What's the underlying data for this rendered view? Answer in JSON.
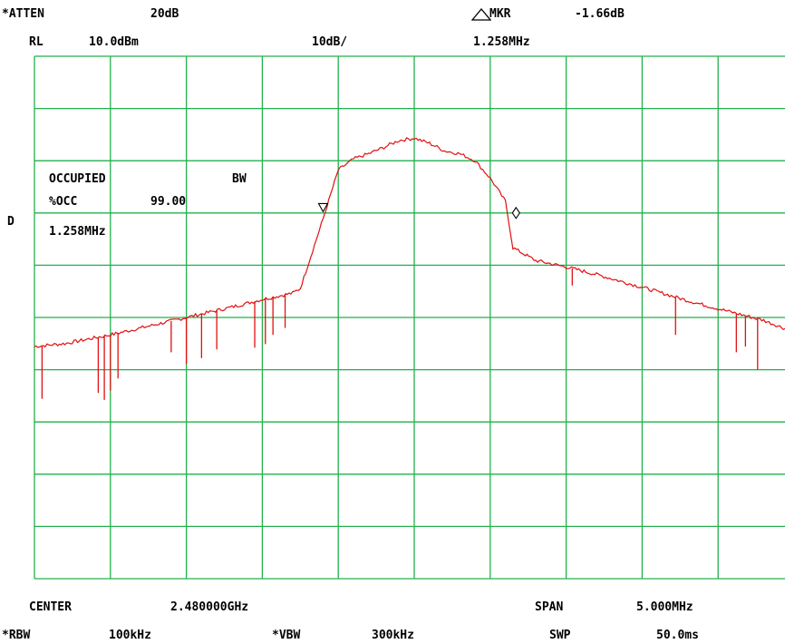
{
  "header": {
    "atten_label": "*ATTEN",
    "atten_value": "20dB",
    "mkr_label": "MKR",
    "mkr_value": "-1.66dB",
    "rl_label": "RL",
    "rl_value": "10.0dBm",
    "scale": "10dB/",
    "mkr_freq": "1.258MHz"
  },
  "side_marker": "D",
  "occupied": {
    "title": "OCCUPIED",
    "bw": "BW",
    "pct_label": "%OCC",
    "pct_value": "99.00",
    "bw_value": "1.258MHz"
  },
  "footer": {
    "center_label": "CENTER",
    "center_value": "2.480000GHz",
    "span_label": "SPAN",
    "span_value": "5.000MHz",
    "rbw_label": "*RBW",
    "rbw_value": "100kHz",
    "vbw_label": "*VBW",
    "vbw_value": "300kHz",
    "swp_label": "SWP",
    "swp_value": "50.0ms"
  },
  "colors": {
    "grid": "#22b14c",
    "trace": "#e01010",
    "text": "#000000"
  },
  "chart_data": {
    "type": "line",
    "x_unit": "MHz offset from center",
    "ylim_db": [
      -80,
      10
    ],
    "xlim_mhz": [
      -2.5,
      2.5
    ],
    "grid": {
      "divisions_x": 10,
      "divisions_y": 10
    },
    "series": [
      {
        "x": [
          -2.5,
          -2.3,
          -2.0,
          -1.8,
          -1.5,
          -1.2,
          -1.0,
          -0.8,
          -0.75,
          -0.6,
          -0.5,
          -0.4,
          -0.3,
          -0.2,
          -0.1,
          0.0,
          0.1,
          0.2,
          0.3,
          0.4,
          0.5,
          0.6,
          0.65,
          0.8,
          1.0,
          1.2,
          1.5,
          1.8,
          2.0,
          2.3,
          2.5
        ],
        "y": [
          -40.0,
          -39.5,
          -38.0,
          -36.8,
          -35.0,
          -33.2,
          -31.9,
          -30.8,
          -30.0,
          -18.0,
          -9.6,
          -7.7,
          -6.8,
          -5.7,
          -4.5,
          -4.1,
          -5.0,
          -6.3,
          -6.8,
          -8.0,
          -11.0,
          -15.0,
          -23.0,
          -25.2,
          -26.3,
          -27.6,
          -29.8,
          -32.1,
          -33.5,
          -35.5,
          -37.5
        ]
      }
    ],
    "dips": [
      {
        "x": -2.45,
        "y": -49.0
      },
      {
        "x": -2.08,
        "y": -48.0
      },
      {
        "x": -2.04,
        "y": -49.2
      },
      {
        "x": -2.0,
        "y": -47.6
      },
      {
        "x": -1.95,
        "y": -45.5
      },
      {
        "x": -1.6,
        "y": -41.0
      },
      {
        "x": -1.5,
        "y": -43.0
      },
      {
        "x": -1.4,
        "y": -42.0
      },
      {
        "x": -1.3,
        "y": -40.5
      },
      {
        "x": -1.05,
        "y": -40.2
      },
      {
        "x": -0.98,
        "y": -39.6
      },
      {
        "x": -0.93,
        "y": -38.0
      },
      {
        "x": -0.85,
        "y": -36.8
      },
      {
        "x": 1.04,
        "y": -29.5
      },
      {
        "x": 1.72,
        "y": -38.0
      },
      {
        "x": 2.12,
        "y": -41.0
      },
      {
        "x": 2.18,
        "y": -40.0
      },
      {
        "x": 2.26,
        "y": -44.0
      },
      {
        "x": 2.48,
        "y": -46.0
      }
    ],
    "markers": [
      {
        "x": -0.6,
        "y": -16.0,
        "shape": "triangle-down"
      },
      {
        "x": 0.67,
        "y": -17.0,
        "shape": "diamond"
      }
    ]
  }
}
